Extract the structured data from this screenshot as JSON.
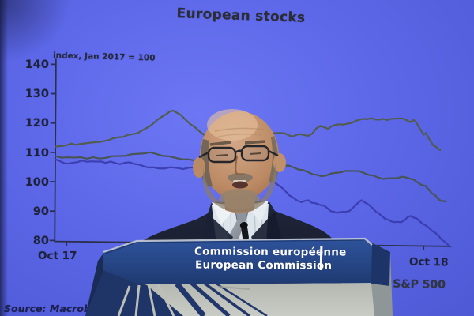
{
  "screen": {
    "title": "European stocks",
    "axis_note": "index, Jan 2017 = 100",
    "source": "Source: Macrobond"
  },
  "podium": {
    "line1": "Commission européenne",
    "line2": "European Commission"
  },
  "chart_data": {
    "type": "line",
    "title": "European stocks",
    "ylabel": "index, Jan 2017 = 100",
    "ylim": [
      80,
      140
    ],
    "yticks": [
      140,
      130,
      120,
      110,
      100,
      90,
      80
    ],
    "xlabels": [
      "Oct 17",
      "Oct 18"
    ],
    "legend_visible": [
      "US S&P 500"
    ],
    "legend_position": "bottom-right",
    "grid": false,
    "source": "Source: Macrobond",
    "series": [
      {
        "name": "upper-green-line",
        "color": "#515c49",
        "points": [
          [
            70,
            111.8
          ],
          [
            78,
            112.2
          ],
          [
            84,
            112.6
          ],
          [
            90,
            112.9
          ],
          [
            96,
            112.6
          ],
          [
            102,
            113.1
          ],
          [
            108,
            113.0
          ],
          [
            114,
            113.4
          ],
          [
            120,
            113.7
          ],
          [
            126,
            113.5
          ],
          [
            132,
            114.0
          ],
          [
            138,
            114.5
          ],
          [
            144,
            114.9
          ],
          [
            150,
            115.3
          ],
          [
            156,
            115.6
          ],
          [
            162,
            116.0
          ],
          [
            168,
            116.4
          ],
          [
            174,
            116.9
          ],
          [
            180,
            117.6
          ],
          [
            186,
            118.6
          ],
          [
            192,
            119.8
          ],
          [
            198,
            121.0
          ],
          [
            204,
            122.3
          ],
          [
            210,
            123.4
          ],
          [
            215,
            124.1
          ],
          [
            219,
            124.5
          ],
          [
            223,
            124.0
          ],
          [
            228,
            123.0
          ],
          [
            234,
            121.6
          ],
          [
            240,
            120.2
          ],
          [
            246,
            118.9
          ],
          [
            252,
            117.6
          ],
          [
            258,
            116.5
          ],
          [
            264,
            115.6
          ],
          [
            270,
            114.9
          ],
          [
            276,
            114.4
          ],
          [
            282,
            114.1
          ],
          [
            288,
            113.9
          ],
          [
            294,
            114.1
          ],
          [
            300,
            114.3
          ],
          [
            305,
            114.7
          ],
          [
            310,
            115.1
          ],
          [
            315,
            115.5
          ],
          [
            320,
            115.2
          ],
          [
            325,
            115.8
          ],
          [
            330,
            116.2
          ],
          [
            335,
            116.6
          ],
          [
            340,
            116.3
          ],
          [
            345,
            116.8
          ],
          [
            350,
            117.1
          ],
          [
            355,
            117.3
          ],
          [
            360,
            116.9
          ],
          [
            365,
            116.4
          ],
          [
            370,
            116.1
          ],
          [
            375,
            116.4
          ],
          [
            380,
            116.8
          ],
          [
            385,
            116.6
          ],
          [
            390,
            116.1
          ],
          [
            395,
            117.0
          ],
          [
            400,
            118.9
          ],
          [
            405,
            119.5
          ],
          [
            410,
            119.2
          ],
          [
            415,
            118.8
          ],
          [
            420,
            119.5
          ],
          [
            425,
            120.1
          ],
          [
            430,
            120.4
          ],
          [
            435,
            120.0
          ],
          [
            440,
            120.5
          ],
          [
            445,
            120.9
          ],
          [
            450,
            121.3
          ],
          [
            455,
            121.9
          ],
          [
            460,
            122.3
          ],
          [
            465,
            121.9
          ],
          [
            470,
            122.4
          ],
          [
            475,
            122.1
          ],
          [
            480,
            121.8
          ],
          [
            485,
            122.2
          ],
          [
            490,
            121.9
          ],
          [
            495,
            122.1
          ],
          [
            500,
            122.3
          ],
          [
            505,
            122.5
          ],
          [
            510,
            122.2
          ],
          [
            515,
            121.7
          ],
          [
            519,
            121.3
          ],
          [
            523,
            121.8
          ],
          [
            527,
            121.0
          ],
          [
            530,
            119.6
          ],
          [
            533,
            118.1
          ],
          [
            536,
            116.9
          ],
          [
            539,
            117.6
          ],
          [
            542,
            115.8
          ],
          [
            545,
            114.7
          ],
          [
            548,
            113.5
          ],
          [
            551,
            112.8
          ],
          [
            554,
            112.2
          ],
          [
            557,
            111.9
          ]
        ]
      },
      {
        "name": "middle-green-line",
        "color": "#48534d",
        "points": [
          [
            70,
            108.6
          ],
          [
            78,
            108.2
          ],
          [
            86,
            108.5
          ],
          [
            94,
            108.1
          ],
          [
            102,
            108.4
          ],
          [
            110,
            108.1
          ],
          [
            118,
            108.3
          ],
          [
            126,
            108.0
          ],
          [
            134,
            108.4
          ],
          [
            142,
            108.7
          ],
          [
            150,
            108.9
          ],
          [
            158,
            109.1
          ],
          [
            166,
            109.4
          ],
          [
            174,
            109.7
          ],
          [
            182,
            110.0
          ],
          [
            190,
            110.1
          ],
          [
            198,
            109.7
          ],
          [
            206,
            109.2
          ],
          [
            214,
            108.8
          ],
          [
            222,
            108.4
          ],
          [
            230,
            108.1
          ],
          [
            238,
            107.8
          ],
          [
            246,
            107.6
          ],
          [
            254,
            107.8
          ],
          [
            262,
            107.9
          ],
          [
            270,
            107.6
          ],
          [
            278,
            107.1
          ],
          [
            286,
            106.6
          ],
          [
            294,
            106.2
          ],
          [
            302,
            105.8
          ],
          [
            309,
            105.4
          ],
          [
            316,
            105.0
          ],
          [
            323,
            104.8
          ],
          [
            330,
            104.9
          ],
          [
            336,
            105.3
          ],
          [
            342,
            105.7
          ],
          [
            348,
            106.1
          ],
          [
            354,
            106.4
          ],
          [
            360,
            106.2
          ],
          [
            366,
            105.9
          ],
          [
            372,
            105.4
          ],
          [
            378,
            104.9
          ],
          [
            384,
            104.4
          ],
          [
            390,
            103.9
          ],
          [
            396,
            103.3
          ],
          [
            402,
            102.8
          ],
          [
            407,
            102.5
          ],
          [
            413,
            102.9
          ],
          [
            419,
            103.3
          ],
          [
            425,
            103.7
          ],
          [
            431,
            104.0
          ],
          [
            437,
            104.2
          ],
          [
            443,
            104.4
          ],
          [
            449,
            104.5
          ],
          [
            455,
            104.2
          ],
          [
            461,
            103.7
          ],
          [
            467,
            103.2
          ],
          [
            473,
            102.7
          ],
          [
            479,
            102.2
          ],
          [
            485,
            101.9
          ],
          [
            491,
            101.8
          ],
          [
            497,
            102.0
          ],
          [
            503,
            102.2
          ],
          [
            509,
            102.4
          ],
          [
            514,
            102.3
          ],
          [
            519,
            102.1
          ],
          [
            524,
            101.4
          ],
          [
            529,
            100.6
          ],
          [
            534,
            99.9
          ],
          [
            539,
            99.3
          ],
          [
            543,
            98.2
          ],
          [
            547,
            97.1
          ],
          [
            551,
            96.2
          ],
          [
            555,
            95.1
          ],
          [
            559,
            94.5
          ],
          [
            562,
            94.2
          ],
          [
            565,
            94.2
          ]
        ]
      },
      {
        "name": "blue-line",
        "color": "#3a3cae",
        "points": [
          [
            70,
            107.5
          ],
          [
            76,
            107.0
          ],
          [
            82,
            106.4
          ],
          [
            87,
            106.1
          ],
          [
            92,
            106.5
          ],
          [
            98,
            106.9
          ],
          [
            104,
            107.1
          ],
          [
            110,
            106.9
          ],
          [
            116,
            107.2
          ],
          [
            122,
            106.8
          ],
          [
            128,
            107.0
          ],
          [
            134,
            106.7
          ],
          [
            140,
            106.9
          ],
          [
            146,
            106.5
          ],
          [
            152,
            106.3
          ],
          [
            158,
            106.5
          ],
          [
            164,
            106.8
          ],
          [
            170,
            106.4
          ],
          [
            176,
            105.9
          ],
          [
            182,
            105.5
          ],
          [
            188,
            105.2
          ],
          [
            194,
            105.0
          ],
          [
            200,
            104.8
          ],
          [
            208,
            104.9
          ],
          [
            216,
            105.1
          ],
          [
            224,
            105.0
          ],
          [
            232,
            104.8
          ],
          [
            240,
            105.0
          ],
          [
            248,
            105.2
          ],
          [
            256,
            105.3
          ],
          [
            263,
            105.1
          ],
          [
            270,
            105.0
          ],
          [
            277,
            104.6
          ],
          [
            284,
            104.2
          ],
          [
            291,
            103.9
          ],
          [
            298,
            103.6
          ],
          [
            305,
            103.3
          ],
          [
            311,
            103.1
          ],
          [
            317,
            102.9
          ],
          [
            323,
            102.4
          ],
          [
            329,
            102.0
          ],
          [
            335,
            101.6
          ],
          [
            341,
            101.1
          ],
          [
            347,
            100.5
          ],
          [
            352,
            99.6
          ],
          [
            357,
            98.4
          ],
          [
            362,
            97.2
          ],
          [
            367,
            96.0
          ],
          [
            372,
            94.9
          ],
          [
            377,
            94.1
          ],
          [
            382,
            93.8
          ],
          [
            387,
            94.0
          ],
          [
            391,
            94.3
          ],
          [
            395,
            93.6
          ],
          [
            399,
            93.2
          ],
          [
            403,
            93.0
          ],
          [
            407,
            92.8
          ],
          [
            411,
            92.3
          ],
          [
            415,
            91.6
          ],
          [
            419,
            90.8
          ],
          [
            423,
            90.3
          ],
          [
            427,
            90.1
          ],
          [
            431,
            90.5
          ],
          [
            435,
            90.3
          ],
          [
            439,
            90.5
          ],
          [
            443,
            90.9
          ],
          [
            447,
            91.6
          ],
          [
            451,
            92.8
          ],
          [
            455,
            94.0
          ],
          [
            458,
            94.3
          ],
          [
            461,
            93.9
          ],
          [
            464,
            93.6
          ],
          [
            468,
            92.6
          ],
          [
            472,
            91.8
          ],
          [
            476,
            90.8
          ],
          [
            480,
            89.8
          ],
          [
            484,
            89.1
          ],
          [
            488,
            88.3
          ],
          [
            492,
            87.7
          ],
          [
            496,
            87.3
          ],
          [
            500,
            87.2
          ],
          [
            504,
            87.0
          ],
          [
            508,
            87.0
          ],
          [
            512,
            87.7
          ],
          [
            516,
            88.5
          ],
          [
            520,
            89.2
          ],
          [
            524,
            88.8
          ],
          [
            528,
            88.2
          ],
          [
            532,
            87.4
          ],
          [
            536,
            86.6
          ],
          [
            540,
            85.8
          ],
          [
            544,
            85.1
          ],
          [
            548,
            84.2
          ],
          [
            552,
            83.3
          ],
          [
            556,
            82.4
          ],
          [
            560,
            81.3
          ],
          [
            564,
            80.3
          ],
          [
            568,
            79.5
          ]
        ]
      }
    ]
  },
  "colors": {
    "screen_blue": "#5d68e9",
    "podium_band_navy": "#24417d",
    "podium_gray": "#bcc0b9",
    "axis_ink": "#272c48",
    "legend_ink": "#30353f"
  }
}
